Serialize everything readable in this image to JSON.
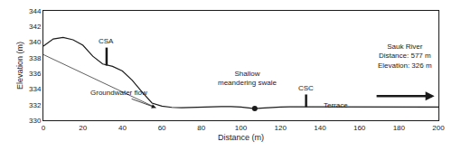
{
  "chart_data": {
    "type": "line",
    "xlabel": "Distance (m)",
    "ylabel": "Elevation (m)",
    "xlim": [
      0,
      200
    ],
    "ylim": [
      330,
      344
    ],
    "xticks": [
      0,
      20,
      40,
      60,
      80,
      100,
      120,
      140,
      160,
      180,
      200
    ],
    "yticks": [
      330,
      332,
      334,
      336,
      338,
      340,
      342,
      344
    ],
    "grid": false,
    "color": "#1a1a1a",
    "series": [
      {
        "x": [
          0,
          5,
          10,
          15,
          20,
          25,
          30,
          35,
          40,
          45,
          50,
          55,
          60,
          65,
          70,
          75,
          80,
          85,
          90,
          95,
          100,
          105,
          107,
          110,
          115,
          120,
          125,
          130,
          135,
          140,
          145,
          150,
          155,
          160,
          165,
          170,
          175,
          180,
          185,
          190,
          195,
          200
        ],
        "values": [
          339.5,
          340.4,
          340.6,
          340.3,
          339.6,
          338.2,
          337.2,
          336.9,
          336.3,
          335.1,
          333.6,
          332.2,
          331.8,
          331.65,
          331.6,
          331.65,
          331.7,
          331.75,
          331.75,
          331.75,
          331.7,
          331.55,
          331.5,
          331.55,
          331.65,
          331.7,
          331.72,
          331.72,
          331.72,
          331.7,
          331.68,
          331.68,
          331.68,
          331.68,
          331.68,
          331.68,
          331.68,
          331.68,
          331.68,
          331.68,
          331.7,
          331.7
        ]
      },
      {
        "x": [
          0,
          57
        ],
        "values": [
          338.4,
          331.6
        ]
      },
      {
        "x": [
          32,
          32
        ],
        "values": [
          337.0,
          339.3
        ]
      },
      {
        "x": [
          133,
          133
        ],
        "values": [
          331.7,
          333.3
        ]
      },
      {
        "type": "scatter",
        "marker": "circle",
        "x": [
          107
        ],
        "values": [
          331.5
        ]
      }
    ],
    "annotations": [
      {
        "text": "Groundwater flow",
        "x": 23,
        "y": 333.5
      },
      {
        "text": "CSA",
        "x": 32,
        "y": 339.35
      },
      {
        "text": "CSC",
        "x": 133,
        "y": 333.35
      },
      {
        "text": "Terrace",
        "x": 148,
        "y": 331.2
      },
      {
        "text": "Shallow\nmeandering swale",
        "x": 103,
        "y": 334.0
      },
      {
        "text": "Sauk River\nDistance: 577 m\nElevation: 326 m",
        "x": 183,
        "y": 336.2
      },
      {
        "x": 57,
        "y": 331.6,
        "ax": 44,
        "ay": 332.8
      },
      {
        "x": 198,
        "y": 333.1,
        "ax": 168,
        "ay": 333.1
      }
    ]
  }
}
